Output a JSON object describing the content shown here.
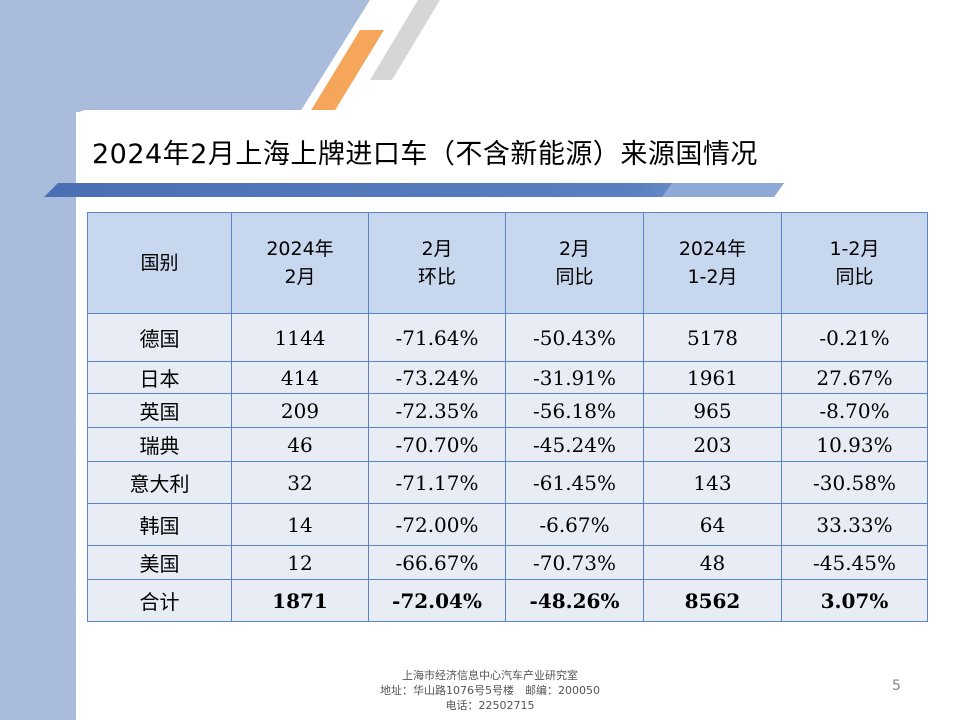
{
  "slide": {
    "title": "2024年2月上海上牌进口车（不含新能源）来源国情况",
    "page_number": "5"
  },
  "table": {
    "headers": [
      "国别",
      "2024年\n2月",
      "2月\n环比",
      "2月\n同比",
      "2024年\n1-2月",
      "1-2月\n同比"
    ],
    "rows": [
      [
        "德国",
        "1144",
        "-71.64%",
        "-50.43%",
        "5178",
        "-0.21%"
      ],
      [
        "日本",
        "414",
        "-73.24%",
        "-31.91%",
        "1961",
        "27.67%"
      ],
      [
        "英国",
        "209",
        "-72.35%",
        "-56.18%",
        "965",
        "-8.70%"
      ],
      [
        "瑞典",
        "46",
        "-70.70%",
        "-45.24%",
        "203",
        "10.93%"
      ],
      [
        "意大利",
        "32",
        "-71.17%",
        "-61.45%",
        "143",
        "-30.58%"
      ],
      [
        "韩国",
        "14",
        "-72.00%",
        "-6.67%",
        "64",
        "33.33%"
      ],
      [
        "美国",
        "12",
        "-66.67%",
        "-70.73%",
        "48",
        "-45.45%"
      ]
    ],
    "total": [
      "合计",
      "1871",
      "-72.04%",
      "-48.26%",
      "8562",
      "3.07%"
    ]
  },
  "footer": {
    "line1": "上海市经济信息中心汽车产业研究室",
    "line2": "地址：华山路1076号5号楼　邮编：200050",
    "line3": "电话：22502715"
  }
}
